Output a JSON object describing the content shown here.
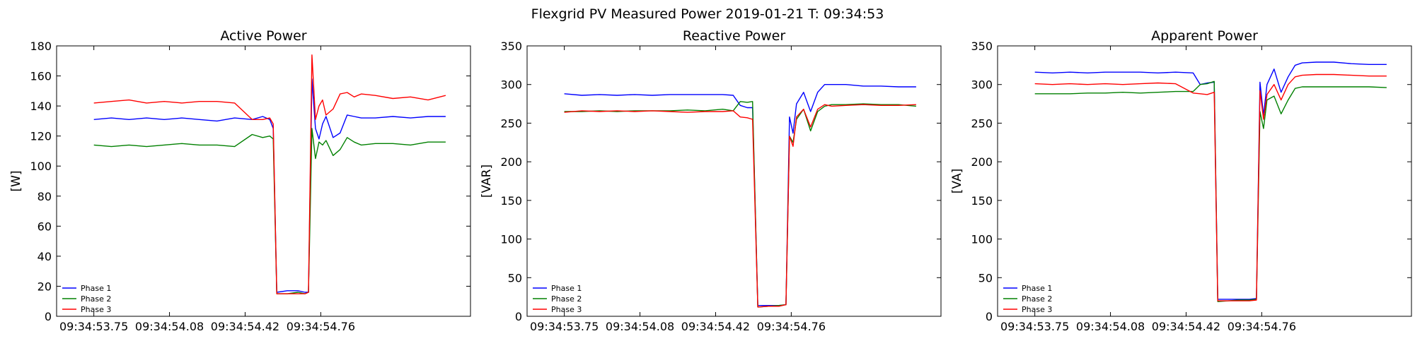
{
  "suptitle": "Flexgrid PV Measured Power 2019-01-21 T: 09:34:53",
  "colors": {
    "phase1": "#0000ff",
    "phase2": "#008000",
    "phase3": "#ff0000"
  },
  "chart_data": [
    {
      "type": "line",
      "title": "Active Power",
      "xlabel": "",
      "ylabel": "[W]",
      "ylim": [
        0,
        180
      ],
      "yticks": [
        0,
        20,
        40,
        60,
        80,
        100,
        120,
        140,
        160,
        180
      ],
      "xtick_labels": [
        "09:34:53.75",
        "09:34:54.08",
        "09:34:54.42",
        "09:34:54.76"
      ],
      "grid": false,
      "legend": "bottom-left",
      "x": [
        0,
        0.05,
        0.1,
        0.15,
        0.2,
        0.25,
        0.3,
        0.35,
        0.4,
        0.45,
        0.48,
        0.5,
        0.51,
        0.52,
        0.55,
        0.58,
        0.6,
        0.61,
        0.62,
        0.63,
        0.64,
        0.65,
        0.66,
        0.68,
        0.7,
        0.72,
        0.74,
        0.76,
        0.8,
        0.85,
        0.9,
        0.95,
        1.0
      ],
      "series": [
        {
          "name": "Phase 1",
          "values": [
            131,
            132,
            131,
            132,
            131,
            132,
            131,
            130,
            132,
            131,
            133,
            131,
            125,
            16,
            17,
            17,
            16,
            16,
            158,
            125,
            118,
            128,
            133,
            119,
            122,
            134,
            133,
            132,
            132,
            133,
            132,
            133,
            133
          ]
        },
        {
          "name": "Phase 2",
          "values": [
            114,
            113,
            114,
            113,
            114,
            115,
            114,
            114,
            113,
            121,
            119,
            120,
            118,
            15,
            15,
            16,
            15,
            16,
            125,
            105,
            116,
            114,
            117,
            107,
            111,
            119,
            116,
            114,
            115,
            115,
            114,
            116,
            116
          ]
        },
        {
          "name": "Phase 3",
          "values": [
            142,
            143,
            144,
            142,
            143,
            142,
            143,
            143,
            142,
            131,
            131,
            132,
            128,
            15,
            15,
            15,
            15,
            16,
            174,
            131,
            140,
            144,
            134,
            138,
            148,
            149,
            146,
            148,
            147,
            145,
            146,
            144,
            147
          ]
        }
      ]
    },
    {
      "type": "line",
      "title": "Reactive Power",
      "xlabel": "",
      "ylabel": "[VAR]",
      "ylim": [
        0,
        350
      ],
      "yticks": [
        0,
        50,
        100,
        150,
        200,
        250,
        300,
        350
      ],
      "xtick_labels": [
        "09:34:53.75",
        "09:34:54.08",
        "09:34:54.42",
        "09:34:54.76"
      ],
      "grid": false,
      "legend": "bottom-left",
      "x": [
        0,
        0.05,
        0.1,
        0.15,
        0.2,
        0.25,
        0.3,
        0.35,
        0.4,
        0.45,
        0.48,
        0.5,
        0.52,
        0.535,
        0.55,
        0.58,
        0.61,
        0.63,
        0.64,
        0.65,
        0.66,
        0.68,
        0.7,
        0.72,
        0.74,
        0.76,
        0.8,
        0.85,
        0.9,
        0.95,
        1.0
      ],
      "series": [
        {
          "name": "Phase 1",
          "values": [
            288,
            286,
            287,
            286,
            287,
            286,
            287,
            287,
            287,
            287,
            286,
            273,
            270,
            270,
            14,
            14,
            14,
            15,
            258,
            237,
            275,
            290,
            265,
            290,
            300,
            300,
            300,
            298,
            298,
            297,
            297
          ]
        },
        {
          "name": "Phase 2",
          "values": [
            265,
            265,
            266,
            265,
            266,
            266,
            266,
            267,
            266,
            268,
            266,
            278,
            277,
            278,
            12,
            13,
            14,
            15,
            233,
            225,
            255,
            268,
            240,
            265,
            272,
            274,
            274,
            275,
            274,
            274,
            272
          ]
        },
        {
          "name": "Phase 3",
          "values": [
            264,
            266,
            265,
            266,
            265,
            266,
            265,
            264,
            265,
            265,
            266,
            258,
            257,
            255,
            12,
            13,
            13,
            15,
            233,
            220,
            258,
            268,
            245,
            268,
            274,
            272,
            273,
            274,
            273,
            273,
            274
          ]
        }
      ]
    },
    {
      "type": "line",
      "title": "Apparent Power",
      "xlabel": "",
      "ylabel": "[VA]",
      "ylim": [
        0,
        350
      ],
      "yticks": [
        0,
        50,
        100,
        150,
        200,
        250,
        300,
        350
      ],
      "xtick_labels": [
        "09:34:53.75",
        "09:34:54.08",
        "09:34:54.42",
        "09:34:54.76"
      ],
      "grid": false,
      "legend": "bottom-left",
      "x": [
        0,
        0.05,
        0.1,
        0.15,
        0.2,
        0.25,
        0.3,
        0.35,
        0.4,
        0.45,
        0.47,
        0.49,
        0.51,
        0.52,
        0.55,
        0.58,
        0.61,
        0.63,
        0.64,
        0.65,
        0.66,
        0.68,
        0.7,
        0.72,
        0.74,
        0.76,
        0.8,
        0.85,
        0.9,
        0.95,
        1.0
      ],
      "series": [
        {
          "name": "Phase 1",
          "values": [
            316,
            315,
            316,
            315,
            316,
            316,
            316,
            315,
            316,
            315,
            300,
            302,
            303,
            22,
            22,
            22,
            22,
            23,
            303,
            260,
            300,
            320,
            290,
            310,
            325,
            328,
            329,
            329,
            327,
            326,
            326
          ]
        },
        {
          "name": "Phase 2",
          "values": [
            288,
            288,
            288,
            289,
            289,
            290,
            289,
            290,
            291,
            291,
            300,
            301,
            304,
            19,
            20,
            21,
            21,
            22,
            265,
            243,
            280,
            285,
            262,
            280,
            295,
            297,
            297,
            297,
            297,
            297,
            296
          ]
        },
        {
          "name": "Phase 3",
          "values": [
            301,
            300,
            301,
            300,
            301,
            300,
            301,
            302,
            301,
            289,
            288,
            287,
            290,
            20,
            20,
            20,
            20,
            21,
            292,
            255,
            287,
            300,
            280,
            300,
            310,
            312,
            313,
            313,
            312,
            311,
            311
          ]
        }
      ]
    }
  ]
}
